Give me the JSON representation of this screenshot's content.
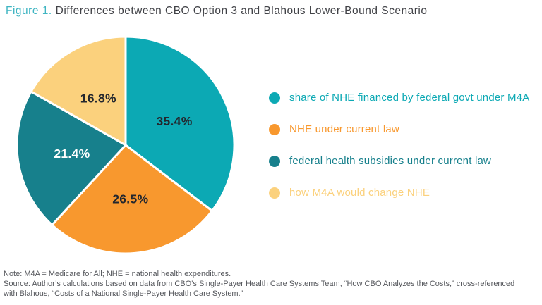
{
  "header": {
    "figure_label": "Figure 1.",
    "title": "Differences between CBO Option 3 and Blahous Lower-Bound Scenario"
  },
  "chart_data": {
    "type": "pie",
    "title": "Figure 1. Differences between CBO Option 3 and Blahous Lower-Bound Scenario",
    "start_angle_deg": 0,
    "direction": "clockwise",
    "labels_inside": true,
    "legend_position": "right",
    "slices": [
      {
        "label": "share of NHE financed by federal govt under M4A",
        "value": 35.4,
        "display": "35.4%",
        "color": "#0CA9B4",
        "value_label_color": "#23272E"
      },
      {
        "label": "NHE under current law",
        "value": 26.5,
        "display": "26.5%",
        "color": "#F8982E",
        "value_label_color": "#23272E"
      },
      {
        "label": "federal health subsidies under current law",
        "value": 21.4,
        "display": "21.4%",
        "color": "#17808C",
        "value_label_color": "#FFFFFF"
      },
      {
        "label": "how M4A would change NHE",
        "value": 16.8,
        "display": "16.8%",
        "color": "#FBD17D",
        "value_label_color": "#23272E"
      }
    ]
  },
  "footer": {
    "note": "Note: M4A = Medicare for All; NHE = national health expenditures.",
    "source": "Source: Author’s calculations based on data from CBO’s Single-Payer Health Care Systems Team, “How CBO Analyzes the Costs,” cross-referenced with Blahous, “Costs of a National Single-Payer Health Care System.”"
  }
}
